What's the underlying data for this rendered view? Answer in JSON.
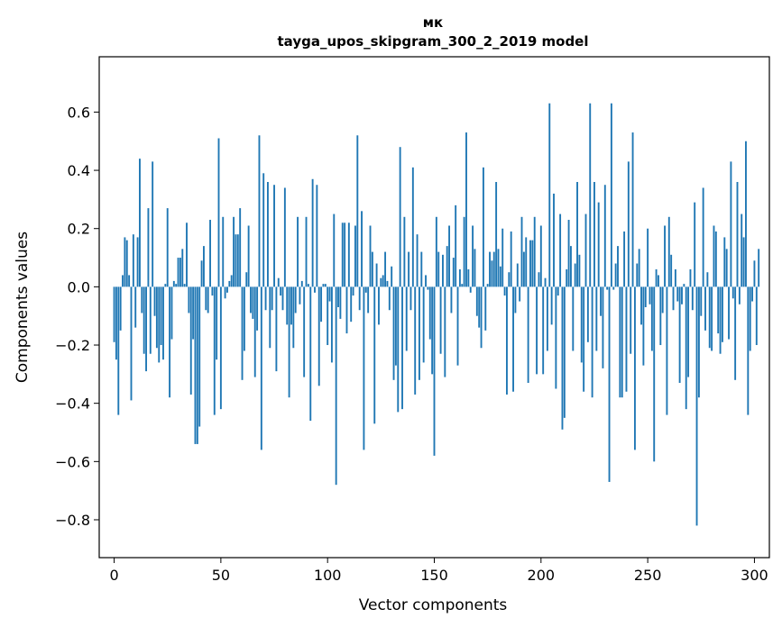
{
  "chart_data": {
    "type": "bar",
    "title": "мк",
    "subtitle": "tayga_upos_skipgram_300_2_2019 model",
    "xlabel": "Vector components",
    "ylabel": "Components values",
    "xlim": [
      -7,
      307
    ],
    "ylim": [
      -0.93,
      0.79
    ],
    "xticks": [
      0,
      50,
      100,
      150,
      200,
      250,
      300
    ],
    "xtick_labels": [
      "0",
      "50",
      "100",
      "150",
      "200",
      "250",
      "300"
    ],
    "yticks": [
      -0.8,
      -0.6,
      -0.4,
      -0.2,
      0.0,
      0.2,
      0.4,
      0.6
    ],
    "ytick_labels": [
      "−0.8",
      "−0.6",
      "−0.4",
      "−0.2",
      "0.0",
      "0.2",
      "0.4",
      "0.6"
    ],
    "bar_color": "#1f77b4",
    "values": [
      -0.19,
      -0.25,
      -0.44,
      -0.15,
      0.04,
      0.17,
      0.16,
      0.04,
      -0.39,
      0.18,
      -0.14,
      0.17,
      0.44,
      -0.09,
      -0.23,
      -0.29,
      0.27,
      -0.23,
      0.43,
      -0.1,
      -0.21,
      -0.26,
      -0.2,
      -0.25,
      0.01,
      0.27,
      -0.38,
      -0.18,
      0.02,
      0.01,
      0.1,
      0.1,
      0.13,
      0.01,
      0.22,
      -0.09,
      -0.37,
      -0.18,
      -0.54,
      -0.54,
      -0.48,
      0.09,
      0.14,
      -0.08,
      -0.09,
      0.23,
      -0.03,
      -0.44,
      -0.25,
      0.51,
      -0.42,
      0.24,
      -0.04,
      -0.02,
      0.02,
      0.04,
      0.24,
      0.18,
      0.18,
      0.27,
      -0.32,
      -0.22,
      0.05,
      0.21,
      -0.09,
      -0.11,
      -0.31,
      -0.15,
      0.52,
      -0.56,
      0.39,
      -0.08,
      0.36,
      -0.21,
      -0.08,
      0.35,
      -0.29,
      0.03,
      -0.03,
      -0.08,
      0.34,
      -0.13,
      -0.38,
      -0.13,
      -0.21,
      -0.09,
      0.24,
      -0.06,
      0.02,
      -0.31,
      0.24,
      0.01,
      -0.46,
      0.37,
      -0.02,
      0.35,
      -0.34,
      -0.12,
      0.01,
      0.01,
      -0.2,
      -0.05,
      -0.26,
      0.25,
      -0.68,
      -0.07,
      -0.11,
      0.22,
      0.22,
      -0.16,
      0.22,
      -0.12,
      -0.03,
      0.21,
      0.52,
      -0.08,
      0.26,
      -0.56,
      -0.02,
      -0.09,
      0.21,
      0.12,
      -0.47,
      0.08,
      -0.13,
      0.03,
      0.04,
      0.12,
      0.02,
      -0.08,
      0.07,
      -0.32,
      -0.27,
      -0.43,
      0.48,
      -0.42,
      0.24,
      -0.22,
      0.12,
      -0.08,
      0.41,
      -0.37,
      0.18,
      -0.32,
      0.12,
      -0.26,
      0.04,
      -0.01,
      -0.18,
      -0.3,
      -0.58,
      0.24,
      0.12,
      -0.23,
      0.11,
      -0.31,
      0.14,
      0.21,
      -0.09,
      0.1,
      0.28,
      -0.27,
      0.06,
      0.01,
      0.24,
      0.53,
      0.06,
      -0.02,
      0.21,
      0.13,
      -0.1,
      -0.14,
      -0.21,
      0.41,
      -0.15,
      0.01,
      0.12,
      0.09,
      0.12,
      0.36,
      0.13,
      0.07,
      0.2,
      -0.03,
      -0.37,
      0.05,
      0.19,
      -0.36,
      -0.09,
      0.08,
      -0.05,
      0.24,
      0.12,
      0.17,
      -0.33,
      0.16,
      0.16,
      0.24,
      -0.3,
      0.05,
      0.21,
      -0.3,
      0.03,
      -0.22,
      0.63,
      -0.13,
      0.32,
      -0.35,
      -0.03,
      0.25,
      -0.49,
      -0.45,
      0.06,
      0.23,
      0.14,
      -0.22,
      0.08,
      0.36,
      0.11,
      -0.26,
      -0.36,
      0.25,
      -0.19,
      0.63,
      -0.38,
      0.36,
      -0.22,
      0.29,
      -0.1,
      -0.28,
      0.35,
      -0.01,
      -0.67,
      0.63,
      -0.01,
      0.08,
      0.14,
      -0.38,
      -0.38,
      0.19,
      -0.36,
      0.43,
      -0.23,
      0.53,
      -0.56,
      0.08,
      0.13,
      -0.13,
      -0.27,
      -0.07,
      0.2,
      -0.06,
      -0.22,
      -0.6,
      0.06,
      0.04,
      -0.2,
      -0.09,
      0.21,
      -0.44,
      0.24,
      0.11,
      -0.08,
      0.06,
      -0.05,
      -0.33,
      -0.06,
      0.01,
      -0.42,
      -0.31,
      0.06,
      -0.08,
      0.29,
      -0.82,
      -0.38,
      -0.1,
      0.34,
      -0.15,
      0.05,
      -0.21,
      -0.22,
      0.21,
      0.19,
      -0.16,
      -0.23,
      -0.19,
      0.17,
      0.13,
      -0.18,
      0.43,
      -0.04,
      -0.32,
      0.36,
      -0.06,
      0.25,
      0.17,
      0.5,
      -0.44,
      -0.22,
      -0.05,
      0.09,
      -0.2,
      0.13
    ]
  }
}
